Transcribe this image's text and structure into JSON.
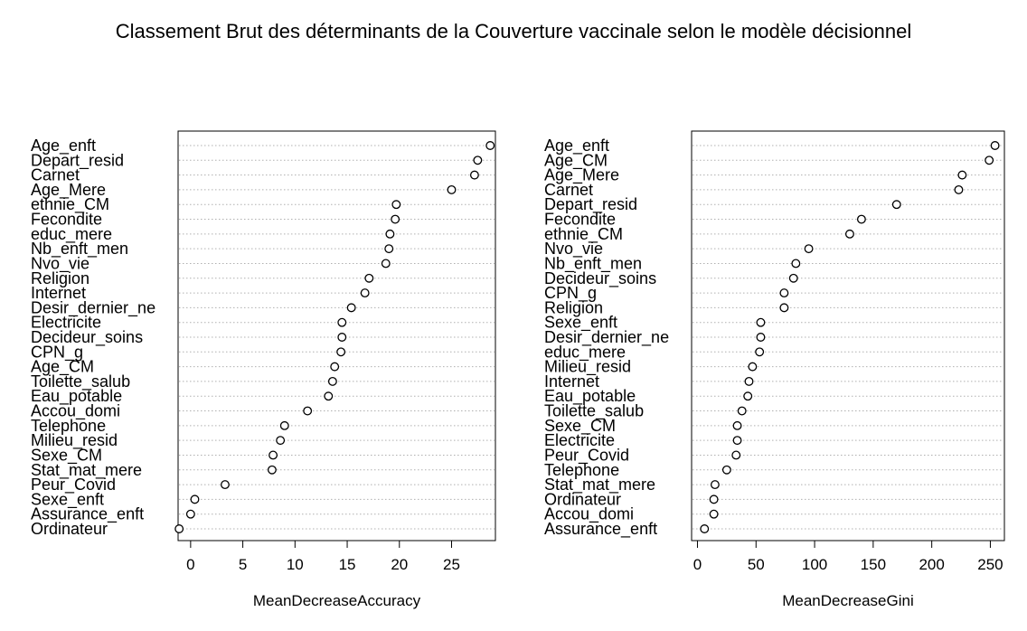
{
  "title": "Classement Brut des déterminants de la Couverture vaccinale selon le modèle décisionnel",
  "chart_data": [
    {
      "type": "scatter",
      "xlabel": "MeanDecreaseAccuracy",
      "xlim": [
        -1.2,
        29.2
      ],
      "xticks": [
        0,
        5,
        10,
        15,
        20,
        25
      ],
      "grid": "horizontal dotted",
      "categories": [
        "Age_enft",
        "Depart_resid",
        "Carnet",
        "Age_Mere",
        "ethnie_CM",
        "Fecondite",
        "educ_mere",
        "Nb_enft_men",
        "Nvo_vie",
        "Religion",
        "Internet",
        "Desir_dernier_ne",
        "Electricite",
        "Decideur_soins",
        "CPN_g",
        "Age_CM",
        "Toilette_salub",
        "Eau_potable",
        "Accou_domi",
        "Telephone",
        "Milieu_resid",
        "Sexe_CM",
        "Stat_mat_mere",
        "Peur_Covid",
        "Sexe_enft",
        "Assurance_enft",
        "Ordinateur"
      ],
      "values": [
        28.7,
        27.5,
        27.2,
        25.0,
        19.7,
        19.6,
        19.1,
        19.0,
        18.7,
        17.1,
        16.7,
        15.4,
        14.5,
        14.5,
        14.4,
        13.8,
        13.6,
        13.2,
        11.2,
        9.0,
        8.6,
        7.9,
        7.8,
        3.3,
        0.4,
        0.0,
        -1.1
      ]
    },
    {
      "type": "scatter",
      "xlabel": "MeanDecreaseGini",
      "xlim": [
        -5,
        262
      ],
      "xticks": [
        0,
        50,
        100,
        150,
        200,
        250
      ],
      "grid": "horizontal dotted",
      "categories": [
        "Age_enft",
        "Age_CM",
        "Age_Mere",
        "Carnet",
        "Depart_resid",
        "Fecondite",
        "ethnie_CM",
        "Nvo_vie",
        "Nb_enft_men",
        "Decideur_soins",
        "CPN_g",
        "Religion",
        "Sexe_enft",
        "Desir_dernier_ne",
        "educ_mere",
        "Milieu_resid",
        "Internet",
        "Eau_potable",
        "Toilette_salub",
        "Sexe_CM",
        "Electricite",
        "Peur_Covid",
        "Telephone",
        "Stat_mat_mere",
        "Ordinateur",
        "Accou_domi",
        "Assurance_enft"
      ],
      "values": [
        254,
        249,
        226,
        223,
        170,
        140,
        130,
        95,
        84,
        82,
        74,
        74,
        54,
        54,
        53,
        47,
        44,
        43,
        38,
        34,
        34,
        33,
        25,
        15,
        14,
        14,
        6
      ]
    }
  ]
}
